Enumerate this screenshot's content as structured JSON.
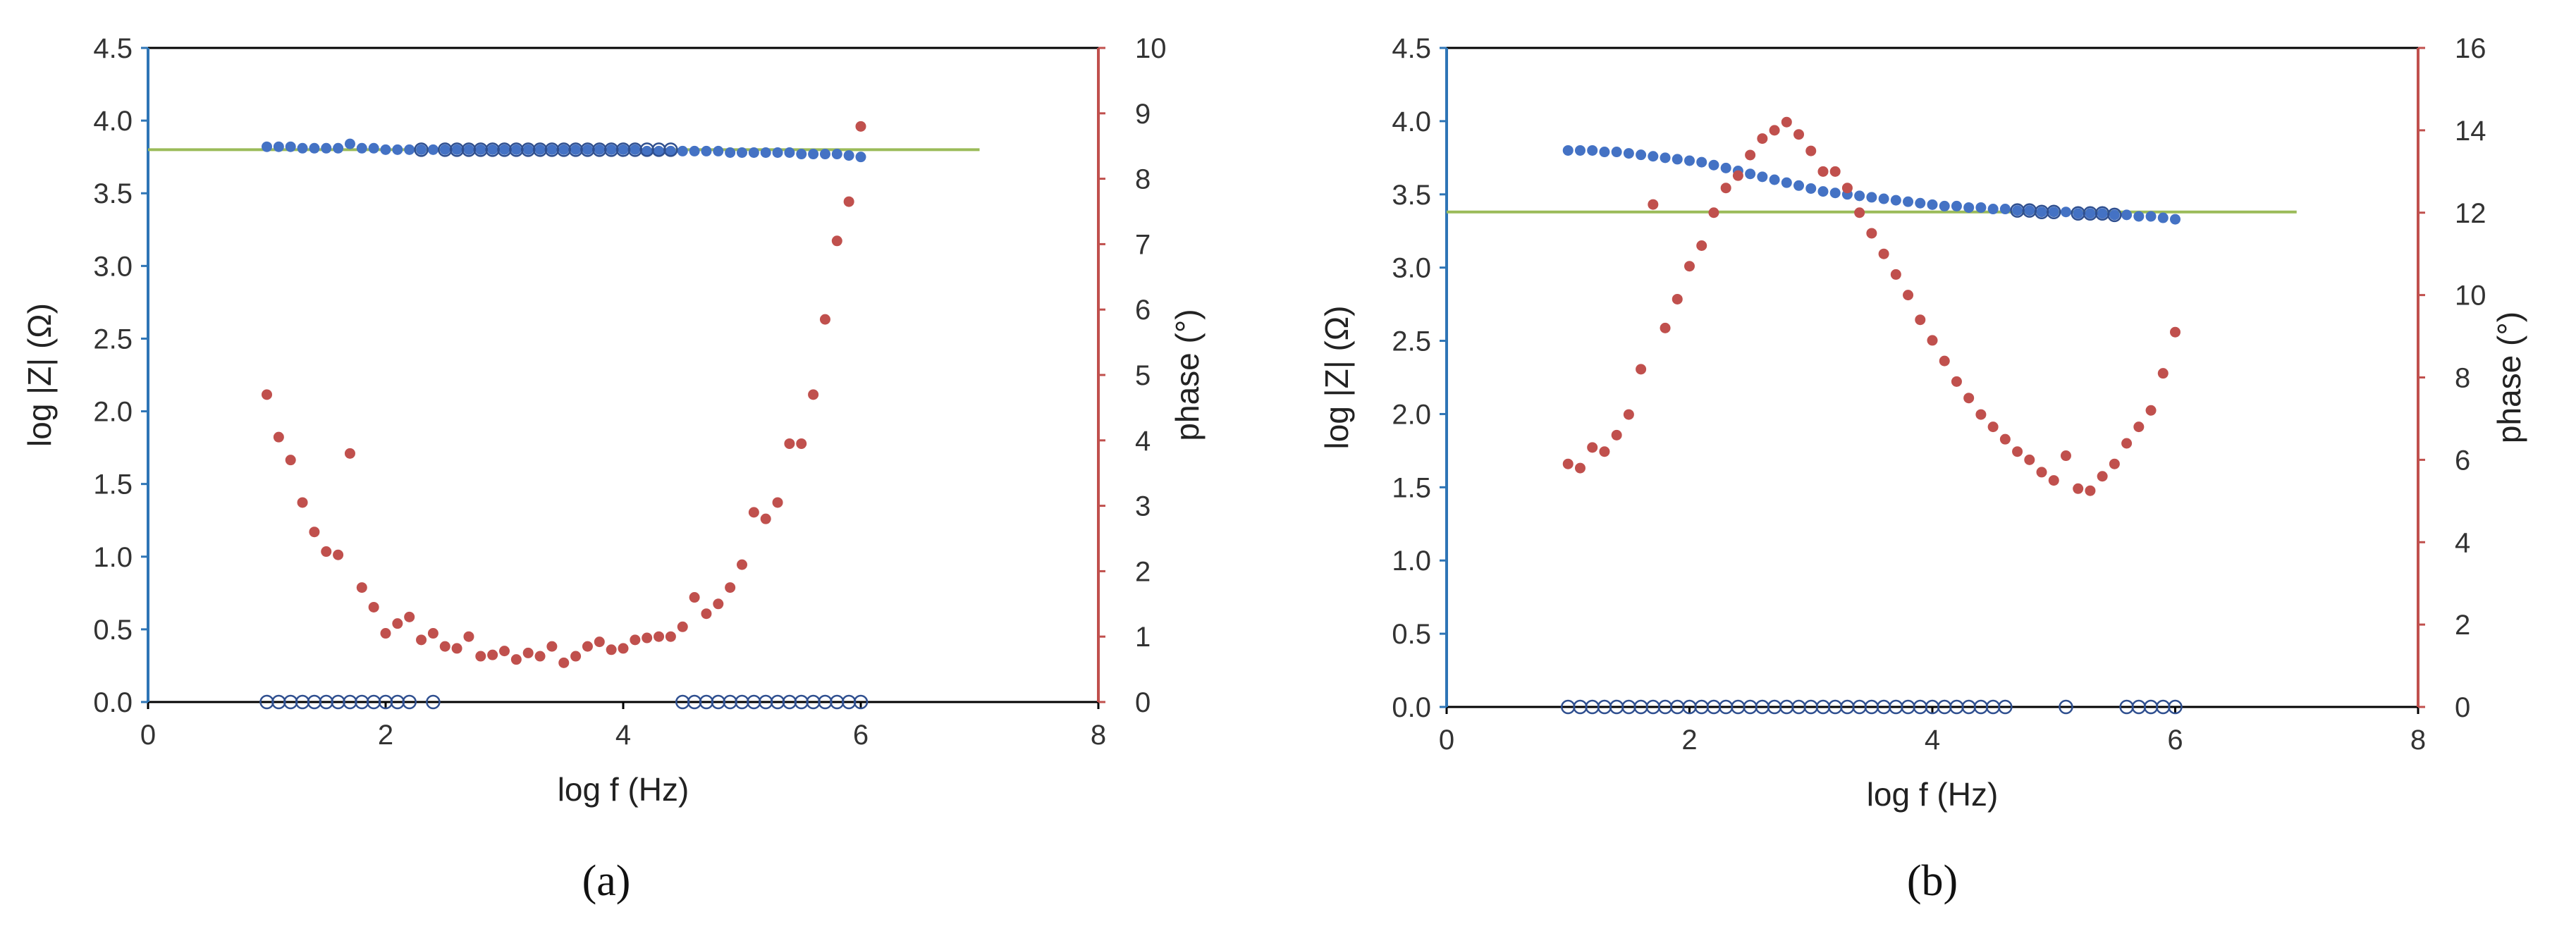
{
  "chart_data": [
    {
      "type": "scatter",
      "panel_label": "(a)",
      "xlabel": "log f (Hz)",
      "ylabel": "log |Z| (Ω)",
      "y2label": "phase (°)",
      "xlim": [
        0,
        8
      ],
      "ylim": [
        0,
        4.5
      ],
      "y2lim": [
        0,
        10
      ],
      "x_ticks": [
        "0",
        "2",
        "4",
        "6",
        "8"
      ],
      "y_ticks": [
        "0.0",
        "0.5",
        "1.0",
        "1.5",
        "2.0",
        "2.5",
        "3.0",
        "3.5",
        "4.0",
        "4.5"
      ],
      "y2_ticks": [
        "0",
        "1",
        "2",
        "3",
        "4",
        "5",
        "6",
        "7",
        "8",
        "9",
        "10"
      ],
      "colors": {
        "logZ": "#4472c4",
        "phase": "#c0504d",
        "fit": "#9bbb59",
        "open": "#2f4f8f",
        "axis_left": "#2e75b6",
        "axis_right": "#c0504d"
      },
      "fit_line": {
        "axis": "left",
        "x": [
          0,
          7
        ],
        "y": [
          3.8,
          3.8
        ]
      },
      "series": [
        {
          "name": "log |Z|",
          "axis": "left",
          "marker": "filled-circle",
          "x": [
            1.0,
            1.1,
            1.2,
            1.3,
            1.4,
            1.5,
            1.6,
            1.7,
            1.8,
            1.9,
            2.0,
            2.1,
            2.2,
            2.3,
            2.4,
            2.5,
            2.6,
            2.7,
            2.8,
            2.9,
            3.0,
            3.1,
            3.2,
            3.3,
            3.4,
            3.5,
            3.6,
            3.7,
            3.8,
            3.9,
            4.0,
            4.1,
            4.2,
            4.3,
            4.4,
            4.5,
            4.6,
            4.7,
            4.8,
            4.9,
            5.0,
            5.1,
            5.2,
            5.3,
            5.4,
            5.5,
            5.6,
            5.7,
            5.8,
            5.9,
            6.0
          ],
          "y": [
            3.82,
            3.82,
            3.82,
            3.81,
            3.81,
            3.81,
            3.81,
            3.84,
            3.81,
            3.81,
            3.8,
            3.8,
            3.8,
            3.8,
            3.8,
            3.8,
            3.8,
            3.8,
            3.8,
            3.8,
            3.8,
            3.8,
            3.8,
            3.8,
            3.8,
            3.8,
            3.8,
            3.8,
            3.8,
            3.8,
            3.8,
            3.8,
            3.79,
            3.79,
            3.79,
            3.79,
            3.79,
            3.79,
            3.79,
            3.78,
            3.78,
            3.78,
            3.78,
            3.78,
            3.78,
            3.77,
            3.77,
            3.77,
            3.77,
            3.76,
            3.75
          ]
        },
        {
          "name": "phase",
          "axis": "right",
          "marker": "filled-circle",
          "x": [
            1.0,
            1.1,
            1.2,
            1.3,
            1.4,
            1.5,
            1.6,
            1.7,
            1.8,
            1.9,
            2.0,
            2.1,
            2.2,
            2.3,
            2.4,
            2.5,
            2.6,
            2.7,
            2.8,
            2.9,
            3.0,
            3.1,
            3.2,
            3.3,
            3.4,
            3.5,
            3.6,
            3.7,
            3.8,
            3.9,
            4.0,
            4.1,
            4.2,
            4.3,
            4.4,
            4.5,
            4.6,
            4.7,
            4.8,
            4.9,
            5.0,
            5.1,
            5.2,
            5.3,
            5.4,
            5.5,
            5.6,
            5.7,
            5.8,
            5.9,
            6.0
          ],
          "y": [
            4.7,
            4.05,
            3.7,
            3.05,
            2.6,
            2.3,
            2.25,
            3.8,
            1.75,
            1.45,
            1.05,
            1.2,
            1.3,
            0.95,
            1.05,
            0.85,
            0.82,
            1.0,
            0.7,
            0.72,
            0.78,
            0.65,
            0.75,
            0.7,
            0.85,
            0.6,
            0.7,
            0.85,
            0.92,
            0.8,
            0.82,
            0.95,
            0.98,
            1.0,
            1.0,
            1.15,
            1.6,
            1.35,
            1.5,
            1.75,
            2.1,
            2.9,
            2.8,
            3.05,
            3.95,
            3.95,
            4.7,
            5.85,
            7.05,
            7.65,
            8.8
          ]
        },
        {
          "name": "open markers",
          "axis": "left",
          "marker": "open-circle",
          "x": [
            1.0,
            1.1,
            1.2,
            1.3,
            1.4,
            1.5,
            1.6,
            1.7,
            1.8,
            1.9,
            2.0,
            2.1,
            2.2,
            2.4,
            4.5,
            4.6,
            4.7,
            4.8,
            4.9,
            5.0,
            5.1,
            5.2,
            5.3,
            5.4,
            5.5,
            5.6,
            5.7,
            5.8,
            5.9,
            6.0,
            2.3,
            2.5,
            2.6,
            2.7,
            2.8,
            2.9,
            3.0,
            3.1,
            3.2,
            3.3,
            3.4,
            3.5,
            3.6,
            3.7,
            3.8,
            3.9,
            4.0,
            4.1,
            4.2,
            4.3,
            4.4
          ],
          "y": [
            0,
            0,
            0,
            0,
            0,
            0,
            0,
            0,
            0,
            0,
            0,
            0,
            0,
            0,
            0,
            0,
            0,
            0,
            0,
            0,
            0,
            0,
            0,
            0,
            0,
            0,
            0,
            0,
            0,
            0,
            3.8,
            3.8,
            3.8,
            3.8,
            3.8,
            3.8,
            3.8,
            3.8,
            3.8,
            3.8,
            3.8,
            3.8,
            3.8,
            3.8,
            3.8,
            3.8,
            3.8,
            3.8,
            3.8,
            3.8,
            3.8
          ]
        }
      ]
    },
    {
      "type": "scatter",
      "panel_label": "(b)",
      "xlabel": "log f (Hz)",
      "ylabel": "log |Z| (Ω)",
      "y2label": "phase (°)",
      "xlim": [
        0,
        8
      ],
      "ylim": [
        0,
        4.5
      ],
      "y2lim": [
        0,
        16
      ],
      "x_ticks": [
        "0",
        "2",
        "4",
        "6",
        "8"
      ],
      "y_ticks": [
        "0.0",
        "0.5",
        "1.0",
        "1.5",
        "2.0",
        "2.5",
        "3.0",
        "3.5",
        "4.0",
        "4.5"
      ],
      "y2_ticks": [
        "0",
        "2",
        "4",
        "6",
        "8",
        "10",
        "12",
        "14",
        "16"
      ],
      "colors": {
        "logZ": "#4472c4",
        "phase": "#c0504d",
        "fit": "#9bbb59",
        "open": "#2f4f8f",
        "axis_left": "#2e75b6",
        "axis_right": "#c0504d"
      },
      "fit_line": {
        "axis": "left",
        "x": [
          0,
          7
        ],
        "y": [
          3.38,
          3.38
        ]
      },
      "series": [
        {
          "name": "log |Z|",
          "axis": "left",
          "marker": "filled-circle",
          "x": [
            1.0,
            1.1,
            1.2,
            1.3,
            1.4,
            1.5,
            1.6,
            1.7,
            1.8,
            1.9,
            2.0,
            2.1,
            2.2,
            2.3,
            2.4,
            2.5,
            2.6,
            2.7,
            2.8,
            2.9,
            3.0,
            3.1,
            3.2,
            3.3,
            3.4,
            3.5,
            3.6,
            3.7,
            3.8,
            3.9,
            4.0,
            4.1,
            4.2,
            4.3,
            4.4,
            4.5,
            4.6,
            4.7,
            4.8,
            4.9,
            5.0,
            5.1,
            5.2,
            5.3,
            5.4,
            5.5,
            5.6,
            5.7,
            5.8,
            5.9,
            6.0
          ],
          "y": [
            3.8,
            3.8,
            3.8,
            3.79,
            3.79,
            3.78,
            3.77,
            3.76,
            3.75,
            3.74,
            3.73,
            3.72,
            3.7,
            3.68,
            3.66,
            3.64,
            3.62,
            3.6,
            3.58,
            3.56,
            3.54,
            3.52,
            3.51,
            3.5,
            3.49,
            3.48,
            3.47,
            3.46,
            3.45,
            3.44,
            3.43,
            3.42,
            3.42,
            3.41,
            3.41,
            3.4,
            3.4,
            3.39,
            3.39,
            3.38,
            3.38,
            3.38,
            3.37,
            3.37,
            3.37,
            3.36,
            3.36,
            3.35,
            3.35,
            3.34,
            3.33
          ]
        },
        {
          "name": "phase",
          "axis": "right",
          "marker": "filled-circle",
          "x": [
            1.0,
            1.1,
            1.2,
            1.3,
            1.4,
            1.5,
            1.6,
            1.7,
            1.8,
            1.9,
            2.0,
            2.1,
            2.2,
            2.3,
            2.4,
            2.5,
            2.6,
            2.7,
            2.8,
            2.9,
            3.0,
            3.1,
            3.2,
            3.3,
            3.4,
            3.5,
            3.6,
            3.7,
            3.8,
            3.9,
            4.0,
            4.1,
            4.2,
            4.3,
            4.4,
            4.5,
            4.6,
            4.7,
            4.8,
            4.9,
            5.0,
            5.1,
            5.2,
            5.3,
            5.4,
            5.5,
            5.6,
            5.7,
            5.8,
            5.9,
            6.0
          ],
          "y": [
            5.9,
            5.8,
            6.3,
            6.2,
            6.6,
            7.1,
            8.2,
            12.2,
            9.2,
            9.9,
            10.7,
            11.2,
            12.0,
            12.6,
            12.9,
            13.4,
            13.8,
            14.0,
            14.2,
            13.9,
            13.5,
            13.0,
            13.0,
            12.6,
            12.0,
            11.5,
            11.0,
            10.5,
            10.0,
            9.4,
            8.9,
            8.4,
            7.9,
            7.5,
            7.1,
            6.8,
            6.5,
            6.2,
            6.0,
            5.7,
            5.5,
            6.1,
            5.3,
            5.25,
            5.6,
            5.9,
            6.4,
            6.8,
            7.2,
            8.1,
            9.1
          ]
        },
        {
          "name": "open markers",
          "axis": "left",
          "marker": "open-circle",
          "x": [
            1.0,
            1.1,
            1.2,
            1.3,
            1.4,
            1.5,
            1.6,
            1.7,
            1.8,
            1.9,
            2.0,
            2.1,
            2.2,
            2.3,
            2.4,
            2.5,
            2.6,
            2.7,
            2.8,
            2.9,
            3.0,
            3.1,
            3.2,
            3.3,
            3.4,
            3.5,
            3.6,
            3.7,
            3.8,
            3.9,
            4.0,
            4.1,
            4.2,
            4.3,
            4.4,
            4.5,
            4.6,
            5.1,
            5.6,
            5.7,
            5.8,
            5.9,
            6.0,
            4.7,
            4.8,
            4.9,
            5.0,
            5.2,
            5.3,
            5.4,
            5.5
          ],
          "y": [
            0,
            0,
            0,
            0,
            0,
            0,
            0,
            0,
            0,
            0,
            0,
            0,
            0,
            0,
            0,
            0,
            0,
            0,
            0,
            0,
            0,
            0,
            0,
            0,
            0,
            0,
            0,
            0,
            0,
            0,
            0,
            0,
            0,
            0,
            0,
            0,
            0,
            0,
            0,
            0,
            0,
            0,
            0,
            3.39,
            3.39,
            3.38,
            3.38,
            3.37,
            3.37,
            3.37,
            3.36
          ]
        }
      ]
    }
  ]
}
